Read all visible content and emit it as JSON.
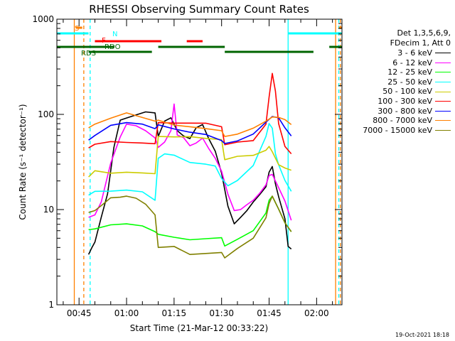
{
  "chart_data": {
    "type": "line",
    "title": "RHESSI Observing Summary Count Rates",
    "xlabel": "Start Time (21-Mar-12 00:33:22)",
    "ylabel": "Count Rate (s⁻¹ detector⁻¹)",
    "y_scale": "log",
    "ylim": [
      1,
      1000
    ],
    "xlim_minutes": [
      38,
      128
    ],
    "x_ticks": [
      {
        "minute": 45,
        "label": "00:45"
      },
      {
        "minute": 60,
        "label": "01:00"
      },
      {
        "minute": 75,
        "label": "01:15"
      },
      {
        "minute": 90,
        "label": "01:30"
      },
      {
        "minute": 105,
        "label": "01:45"
      },
      {
        "minute": 120,
        "label": "02:00"
      }
    ],
    "y_ticks": [
      {
        "value": 1,
        "label": "1"
      },
      {
        "value": 10,
        "label": "10"
      },
      {
        "value": 100,
        "label": "100"
      },
      {
        "value": 1000,
        "label": "1000"
      }
    ],
    "legend": {
      "placement": "right",
      "header": [
        "Det 1,3,5,6,9,",
        "FDecim 1, Att 0"
      ]
    },
    "series": [
      {
        "name": "3 - 6 keV",
        "color": "#000000",
        "x": [
          48,
          49,
          50,
          52,
          54,
          56,
          58,
          60,
          63,
          66,
          69,
          70,
          72,
          74,
          76,
          78,
          80,
          82,
          84,
          86,
          88,
          90,
          92,
          94,
          96,
          98,
          100,
          102,
          104,
          105,
          106,
          107,
          108,
          110,
          111,
          112
        ],
        "y": [
          3.5,
          4,
          4.5,
          8,
          15,
          45,
          85,
          95,
          100,
          105,
          100,
          60,
          85,
          90,
          70,
          60,
          55,
          70,
          80,
          55,
          40,
          25,
          11,
          7,
          8,
          10,
          12,
          14,
          18,
          25,
          28,
          18,
          14,
          8,
          4,
          4
        ]
      },
      {
        "name": "6 - 12 keV",
        "color": "#ff00ff",
        "x": [
          48,
          50,
          52,
          55,
          58,
          60,
          63,
          66,
          69,
          70,
          72,
          74,
          75,
          76,
          78,
          80,
          82,
          84,
          86,
          88,
          90,
          92,
          94,
          96,
          98,
          100,
          102,
          104,
          105,
          106,
          108,
          110,
          112
        ],
        "y": [
          8,
          9,
          12,
          30,
          60,
          80,
          75,
          65,
          58,
          45,
          50,
          70,
          130,
          60,
          55,
          48,
          50,
          55,
          45,
          35,
          25,
          14,
          10,
          10,
          11,
          13,
          15,
          18,
          22,
          24,
          17,
          12,
          8
        ]
      },
      {
        "name": "12 - 25 keV",
        "color": "#00ff00",
        "x": [
          48,
          50,
          55,
          60,
          65,
          69,
          70,
          75,
          80,
          85,
          90,
          91,
          95,
          100,
          104,
          105,
          106,
          108,
          110,
          112
        ],
        "y": [
          6,
          6.5,
          7,
          7,
          6.5,
          6,
          5.5,
          5,
          5,
          5,
          5,
          4,
          5,
          6,
          9,
          13,
          14,
          10,
          7,
          6
        ]
      },
      {
        "name": "25 - 50 keV",
        "color": "#00ffff",
        "x": [
          48,
          50,
          55,
          60,
          65,
          69,
          70,
          72,
          75,
          80,
          85,
          88,
          90,
          92,
          95,
          100,
          104,
          105,
          106,
          107,
          108,
          110,
          112
        ],
        "y": [
          14,
          15,
          16,
          16,
          15,
          13,
          35,
          38,
          36,
          32,
          30,
          28,
          22,
          18,
          20,
          28,
          60,
          80,
          70,
          40,
          30,
          20,
          15
        ]
      },
      {
        "name": "50 - 100 keV",
        "color": "#cccc00",
        "x": [
          48,
          50,
          55,
          60,
          65,
          69,
          70,
          75,
          80,
          85,
          90,
          91,
          95,
          100,
          104,
          105,
          106,
          108,
          110,
          112
        ],
        "y": [
          22,
          25,
          25,
          25,
          24,
          23,
          60,
          58,
          57,
          58,
          55,
          33,
          35,
          38,
          42,
          45,
          42,
          30,
          27,
          25
        ]
      },
      {
        "name": "100 - 300 keV",
        "color": "#ff0000",
        "x": [
          48,
          50,
          55,
          60,
          65,
          69,
          70,
          75,
          80,
          85,
          90,
          91,
          95,
          100,
          104,
          105,
          106,
          107,
          108,
          110,
          112
        ],
        "y": [
          45,
          48,
          50,
          52,
          50,
          48,
          85,
          82,
          80,
          78,
          76,
          48,
          50,
          55,
          80,
          150,
          260,
          180,
          80,
          45,
          40
        ]
      },
      {
        "name": "300 - 800 keV",
        "color": "#0000ff",
        "x": [
          48,
          50,
          55,
          60,
          65,
          69,
          70,
          75,
          80,
          85,
          90,
          91,
          95,
          100,
          104,
          106,
          108,
          110,
          112
        ],
        "y": [
          55,
          60,
          75,
          85,
          80,
          70,
          75,
          72,
          65,
          60,
          55,
          50,
          52,
          60,
          85,
          95,
          90,
          75,
          60
        ]
      },
      {
        "name": "800 - 7000 keV",
        "color": "#ff8000",
        "x": [
          48,
          50,
          55,
          60,
          65,
          69,
          70,
          75,
          80,
          85,
          90,
          91,
          95,
          100,
          104,
          106,
          108,
          110,
          112
        ],
        "y": [
          75,
          80,
          90,
          100,
          95,
          85,
          85,
          80,
          75,
          70,
          65,
          60,
          62,
          70,
          88,
          95,
          92,
          85,
          80
        ]
      },
      {
        "name": "7000 - 15000 keV",
        "color": "#808000",
        "x": [
          48,
          50,
          52,
          55,
          58,
          60,
          63,
          66,
          69,
          70,
          75,
          80,
          85,
          90,
          91,
          95,
          100,
          104,
          105,
          106,
          108,
          110,
          112
        ],
        "y": [
          9,
          10,
          11,
          13,
          14,
          14,
          13,
          11,
          9,
          4,
          4,
          3.5,
          3.5,
          3.5,
          3,
          4,
          5,
          8,
          12,
          14,
          10,
          7,
          6
        ]
      }
    ],
    "annotations": [
      {
        "label": "S",
        "color": "#ff8000"
      },
      {
        "label": "N",
        "color": "#00ffff"
      },
      {
        "label": "F",
        "color": "#ff0000"
      },
      {
        "label": "RDO",
        "color": "#006400"
      },
      {
        "label": "RDS",
        "color": "#006400"
      }
    ],
    "flag_bars": [
      {
        "flag": "N",
        "color": "#00ffff",
        "segments": [
          [
            38,
            48
          ],
          [
            111,
            128
          ]
        ]
      },
      {
        "flag": "S",
        "color": "#ff8000",
        "segments": [
          [
            44,
            46
          ],
          [
            127,
            128
          ]
        ]
      },
      {
        "flag": "F",
        "color": "#ff0000",
        "segments": [
          [
            50,
            71
          ],
          [
            79,
            84
          ]
        ]
      },
      {
        "flag": "RDO",
        "color": "#006400",
        "segments": [
          [
            38,
            56
          ],
          [
            70,
            91
          ],
          [
            124,
            128
          ]
        ]
      },
      {
        "flag": "RDS",
        "color": "#006400",
        "segments": [
          [
            48,
            68
          ],
          [
            91,
            119
          ]
        ]
      }
    ],
    "vertical_lines": [
      {
        "minute": 43.5,
        "color": "#ff8000",
        "style": "solid"
      },
      {
        "minute": 46.5,
        "color": "#ff8000",
        "style": "dashed"
      },
      {
        "minute": 48.5,
        "color": "#00ffff",
        "style": "dashed"
      },
      {
        "minute": 111,
        "color": "#00ffff",
        "style": "solid"
      },
      {
        "minute": 126,
        "color": "#ff8000",
        "style": "solid"
      },
      {
        "minute": 127,
        "color": "#00ffff",
        "style": "dashed"
      },
      {
        "minute": 127.5,
        "color": "#ff8000",
        "style": "dashed"
      }
    ]
  },
  "footer": "19-Oct-2021 18:18"
}
